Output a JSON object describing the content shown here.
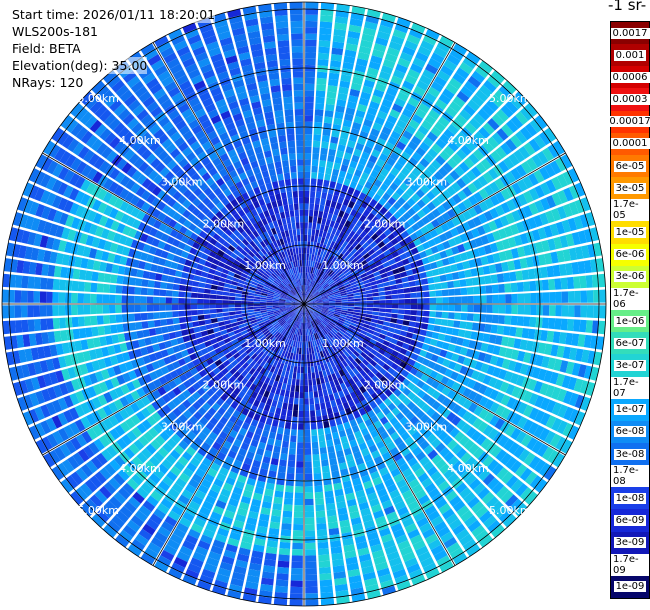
{
  "header": {
    "start_time": "Start time: 2026/01/11 18:20:01",
    "instrument": "WLS200s-181",
    "field": "Field: BETA",
    "elevation": "Elevation(deg): 35.00",
    "nrays": "NRays: 120"
  },
  "colorbar": {
    "units_label": "-1 sr-",
    "ticks": [
      "0.0017",
      "0.001",
      "0.0006",
      "0.0003",
      "0.00017",
      "0.0001",
      "6e-05",
      "3e-05",
      "1.7e-05",
      "1e-05",
      "6e-06",
      "3e-06",
      "1.7e-06",
      "1e-06",
      "6e-07",
      "3e-07",
      "1.7e-07",
      "1e-07",
      "6e-08",
      "3e-08",
      "1.7e-08",
      "1e-08",
      "6e-09",
      "3e-09",
      "1.7e-09",
      "1e-09"
    ],
    "colors": [
      "#8a0000",
      "#b00000",
      "#d40000",
      "#f01010",
      "#ff3300",
      "#ff5a00",
      "#ff7a00",
      "#ff9900",
      "#ffbb00",
      "#ffdd00",
      "#f6ff00",
      "#ccff33",
      "#99ff66",
      "#66ee88",
      "#33ddbb",
      "#22d4d4",
      "#14c0ee",
      "#0aa8ff",
      "#0f8cf5",
      "#1070f0",
      "#1558f0",
      "#1a3fe8",
      "#1628d8",
      "#1218b8",
      "#0c0c90",
      "#06066a"
    ]
  },
  "ppi": {
    "nrays": 120,
    "range_rings_km": [
      1,
      2,
      3,
      4,
      5
    ],
    "ring_labels": [
      "1.00km",
      "2.00km",
      "3.00km",
      "4.00km",
      "5.00km"
    ],
    "scan_colors": [
      "#06066a",
      "#1218b8",
      "#1628d8",
      "#1a3fe8",
      "#1558f0",
      "#1070f0",
      "#0f8cf5",
      "#0aa8ff",
      "#14c0ee",
      "#22d4d4"
    ]
  }
}
